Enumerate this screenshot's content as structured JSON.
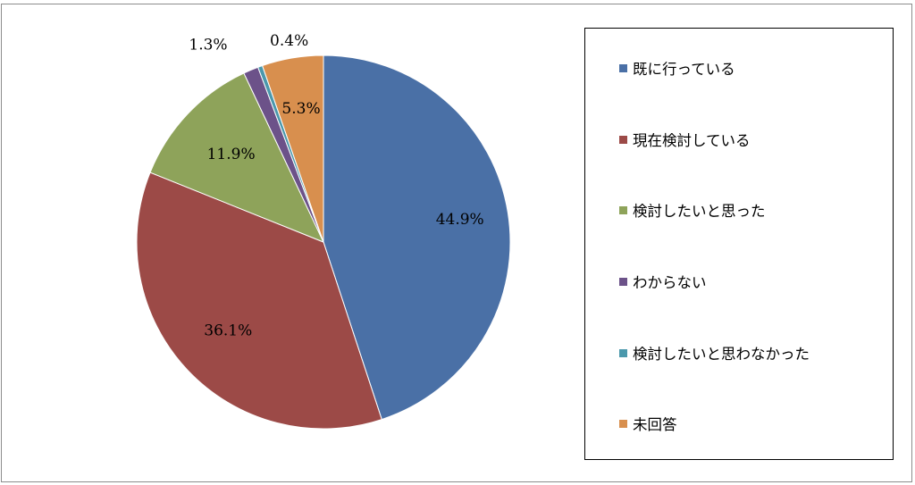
{
  "chart_data": {
    "type": "pie",
    "categories": [
      "既に行っている",
      "現在検討している",
      "検討したいと思った",
      "わからない",
      "検討したいと思わなかった",
      "未回答"
    ],
    "values": [
      44.9,
      36.1,
      11.9,
      1.3,
      0.4,
      5.3
    ],
    "labels": [
      "44.9%",
      "36.1%",
      "11.9%",
      "1.3%",
      "0.4%",
      "5.3%"
    ],
    "colors": [
      "#4a70a6",
      "#9c4a47",
      "#8ea35a",
      "#6c5289",
      "#4b98ac",
      "#d88f4e"
    ],
    "legend_position": "right"
  }
}
